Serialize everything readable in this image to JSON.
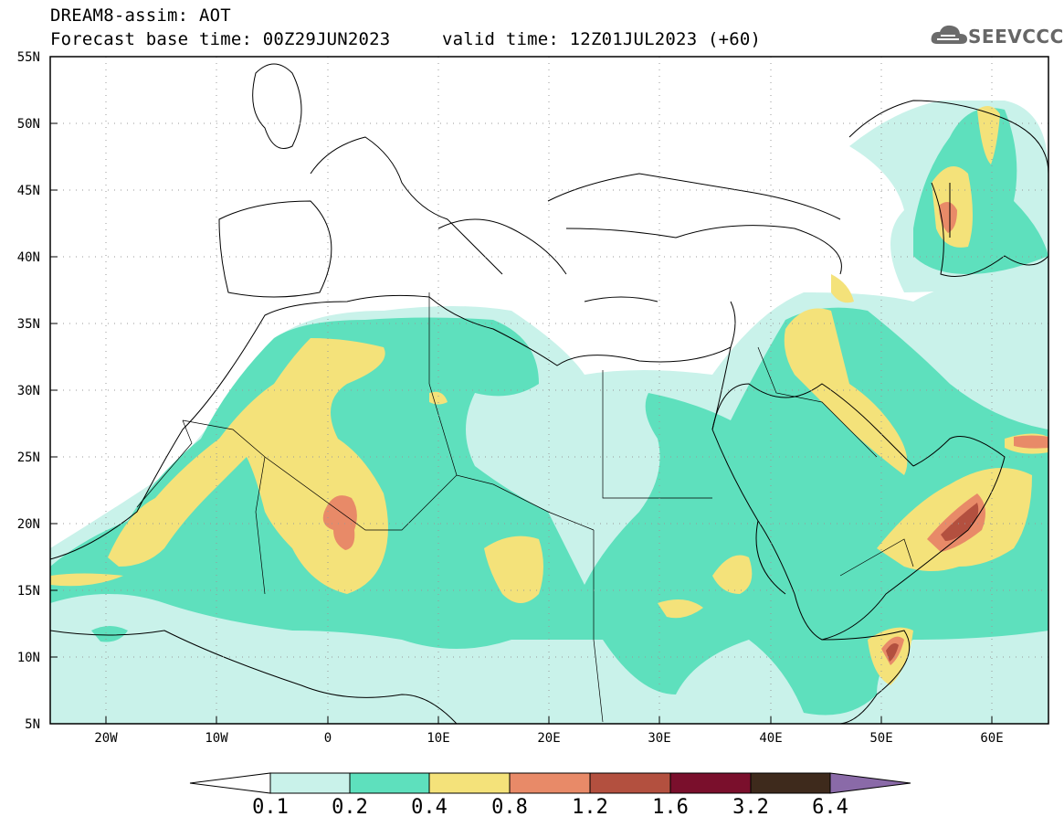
{
  "header": {
    "model_line": "DREAM8-assim: AOT",
    "base_time": "Forecast base time: 00Z29JUN2023",
    "valid_time": "valid time: 12Z01JUL2023 (+60)",
    "logo_text": "SEEVCCC"
  },
  "axes": {
    "lat_labels": [
      "55N",
      "50N",
      "45N",
      "40N",
      "35N",
      "30N",
      "25N",
      "20N",
      "15N",
      "10N",
      "5N"
    ],
    "lon_labels": [
      "20W",
      "10W",
      "0",
      "10E",
      "20E",
      "30E",
      "40E",
      "50E",
      "60E"
    ],
    "lon_range": [
      -25,
      65
    ],
    "lat_range": [
      5,
      55
    ]
  },
  "colorbar": {
    "labels": [
      "0.1",
      "0.2",
      "0.4",
      "0.8",
      "1.2",
      "1.6",
      "3.2",
      "6.4"
    ],
    "colors": [
      "#c9f2ea",
      "#5ee0bd",
      "#f4e27a",
      "#e88a68",
      "#b3503f",
      "#7a0f2c",
      "#3e2a1c",
      "#8a6aa8"
    ]
  }
}
